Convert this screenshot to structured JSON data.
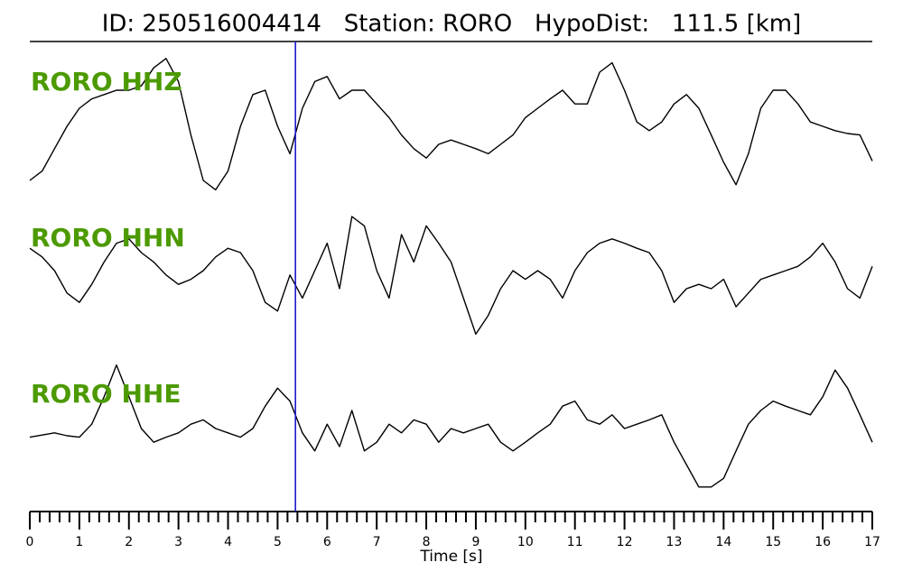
{
  "chart_data": {
    "type": "line",
    "title": "ID: 250516004414   Station: RORO   HypoDist:   111.5 [km]",
    "x_label": "Time [s]",
    "xlim": [
      0,
      17
    ],
    "xticks": [
      0,
      1,
      2,
      3,
      4,
      5,
      6,
      7,
      8,
      9,
      10,
      11,
      12,
      13,
      14,
      15,
      16,
      17
    ],
    "xminorticks": [
      0.2,
      0.4,
      0.6,
      0.8,
      1.2,
      1.4,
      1.6,
      1.8,
      2.2,
      2.4,
      2.6,
      2.8,
      3.2,
      3.4,
      3.6,
      3.8,
      4.2,
      4.4,
      4.6,
      4.8,
      5.2,
      5.4,
      5.6,
      5.8,
      6.2,
      6.4,
      6.6,
      6.8,
      7.2,
      7.4,
      7.6,
      7.8,
      8.2,
      8.4,
      8.6,
      8.8,
      9.2,
      9.4,
      9.6,
      9.8,
      10.2,
      10.4,
      10.6,
      10.8,
      11.2,
      11.4,
      11.6,
      11.8,
      12.2,
      12.4,
      12.6,
      12.8,
      13.2,
      13.4,
      13.6,
      13.8,
      14.2,
      14.4,
      14.6,
      14.8,
      15.2,
      15.4,
      15.6,
      15.8,
      16.2,
      16.4,
      16.6,
      16.8
    ],
    "pick_time": 5.36,
    "pick_color": "#1a1acc",
    "label_color": "#4c9a00",
    "x": [
      0,
      0.25,
      0.5,
      0.75,
      1,
      1.25,
      1.5,
      1.75,
      2,
      2.25,
      2.5,
      2.75,
      3,
      3.25,
      3.5,
      3.75,
      4,
      4.25,
      4.5,
      4.75,
      5,
      5.25,
      5.5,
      5.75,
      6,
      6.25,
      6.5,
      6.75,
      7,
      7.25,
      7.5,
      7.75,
      8,
      8.25,
      8.5,
      8.75,
      9,
      9.25,
      9.5,
      9.75,
      10,
      10.25,
      10.5,
      10.75,
      11,
      11.25,
      11.5,
      11.75,
      12,
      12.25,
      12.5,
      12.75,
      13,
      13.25,
      13.5,
      13.75,
      14,
      14.25,
      14.5,
      14.75,
      15,
      15.25,
      15.5,
      15.75,
      16,
      16.25,
      16.5,
      16.75,
      17
    ],
    "series": [
      {
        "name": "RORO HHZ",
        "color": "#000000",
        "values": [
          -0.75,
          -0.62,
          -0.31,
          0,
          0.25,
          0.38,
          0.44,
          0.5,
          0.5,
          0.56,
          0.81,
          0.94,
          0.62,
          -0.12,
          -0.75,
          -0.88,
          -0.62,
          0,
          0.44,
          0.5,
          0,
          -0.38,
          0.25,
          0.62,
          0.69,
          0.38,
          0.5,
          0.5,
          0.31,
          0.12,
          -0.12,
          -0.31,
          -0.44,
          -0.25,
          -0.19,
          -0.25,
          -0.31,
          -0.38,
          -0.25,
          -0.12,
          0.12,
          0.25,
          0.38,
          0.5,
          0.31,
          0.31,
          0.75,
          0.88,
          0.5,
          0.06,
          -0.06,
          0.06,
          0.31,
          0.44,
          0.25,
          -0.12,
          -0.5,
          -0.81,
          -0.38,
          0.25,
          0.5,
          0.5,
          0.31,
          0.06,
          0,
          -0.06,
          -0.1,
          -0.12,
          -0.48
        ]
      },
      {
        "name": "RORO HHN",
        "color": "#000000",
        "values": [
          0.31,
          0.19,
          0,
          -0.31,
          -0.44,
          -0.19,
          0.12,
          0.38,
          0.44,
          0.25,
          0.12,
          -0.06,
          -0.19,
          -0.12,
          0,
          0.19,
          0.31,
          0.25,
          0,
          -0.44,
          -0.56,
          -0.06,
          -0.38,
          0,
          0.38,
          -0.25,
          0.75,
          0.62,
          0,
          -0.38,
          0.5,
          0.12,
          0.62,
          0.38,
          0.12,
          -0.38,
          -0.88,
          -0.62,
          -0.25,
          0,
          -0.12,
          0,
          -0.12,
          -0.38,
          0,
          0.25,
          0.38,
          0.44,
          0.38,
          0.31,
          0.25,
          0,
          -0.44,
          -0.25,
          -0.19,
          -0.25,
          -0.12,
          -0.5,
          -0.31,
          -0.12,
          -0.06,
          0,
          0.06,
          0.19,
          0.38,
          0.12,
          -0.25,
          -0.38,
          0.06
        ]
      },
      {
        "name": "RORO HHE",
        "color": "#000000",
        "values": [
          -0.12,
          -0.09,
          -0.06,
          -0.1,
          -0.12,
          0.06,
          0.44,
          0.88,
          0.44,
          0,
          -0.19,
          -0.12,
          -0.06,
          0.06,
          0.12,
          0,
          -0.06,
          -0.12,
          0,
          0.31,
          0.56,
          0.38,
          -0.06,
          -0.31,
          0.06,
          -0.25,
          0.25,
          -0.31,
          -0.19,
          0.06,
          -0.06,
          0.12,
          0.06,
          -0.19,
          0,
          -0.06,
          0,
          0.06,
          -0.19,
          -0.31,
          -0.19,
          -0.06,
          0.06,
          0.31,
          0.38,
          0.12,
          0.06,
          0.19,
          0,
          0.06,
          0.12,
          0.19,
          -0.19,
          -0.5,
          -0.81,
          -0.81,
          -0.69,
          -0.31,
          0.06,
          0.25,
          0.38,
          0.31,
          0.25,
          0.19,
          0.44,
          0.81,
          0.56,
          0.19,
          -0.19
        ]
      }
    ]
  }
}
